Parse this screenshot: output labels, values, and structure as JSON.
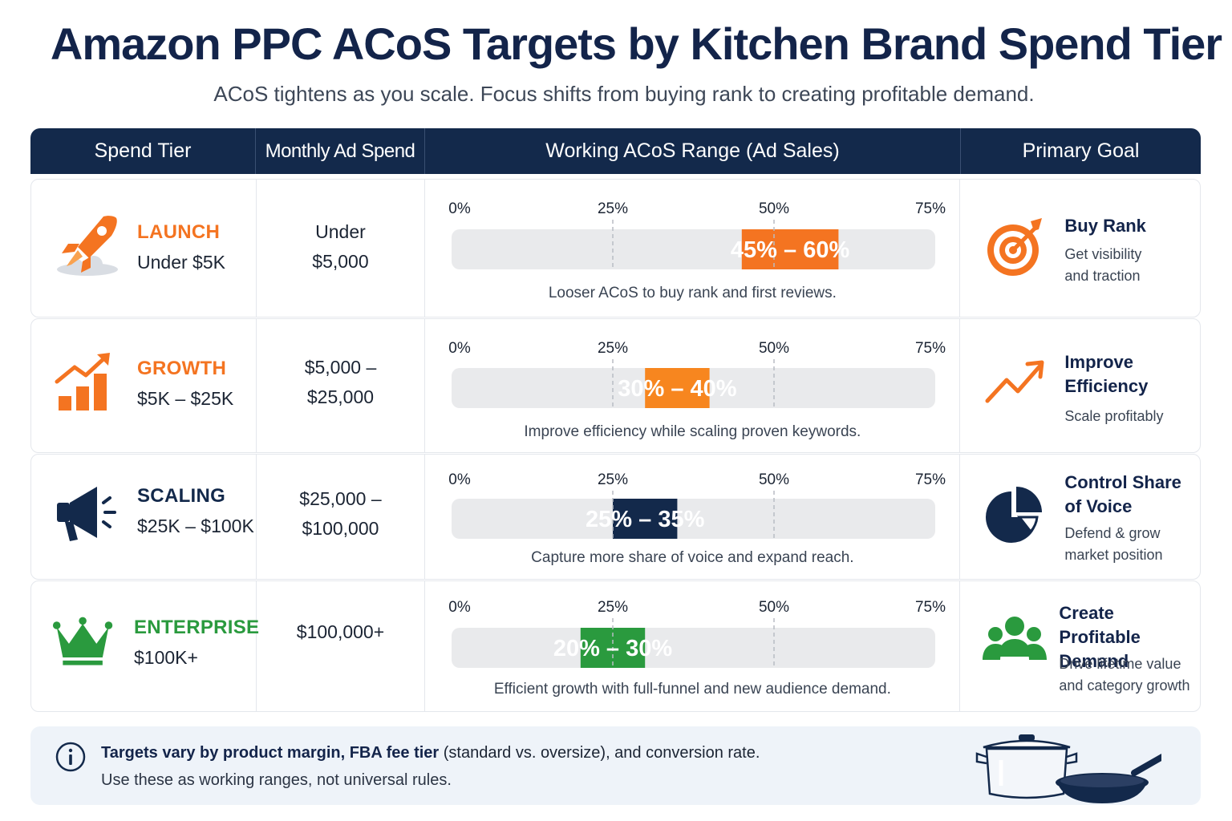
{
  "title": "Amazon PPC ACoS Targets by Kitchen Brand Spend Tier",
  "subtitle": "ACoS tightens as you scale. Focus shifts from buying rank to creating profitable demand.",
  "headers": [
    "Spend Tier",
    "Monthly Ad Spend",
    "Working ACoS Range (Ad Sales)",
    "Primary Goal"
  ],
  "chart_data": {
    "type": "bar",
    "orientation": "horizontal-range",
    "axis_ticks": [
      0,
      25,
      50,
      75
    ],
    "tick_labels": [
      "0%",
      "25%",
      "50%",
      "75%"
    ],
    "xlim": [
      0,
      75
    ],
    "unit": "%",
    "categories": [
      "LAUNCH",
      "GROWTH",
      "SCALING",
      "ENTERPRISE"
    ],
    "ranges": [
      {
        "low": 45,
        "high": 60,
        "label": "45% – 60%",
        "color": "#f47421"
      },
      {
        "low": 30,
        "high": 40,
        "label": "30% – 40%",
        "color": "#f7861f"
      },
      {
        "low": 25,
        "high": 35,
        "label": "25% – 35%",
        "color": "#13294b"
      },
      {
        "low": 20,
        "high": 30,
        "label": "20% – 30%",
        "color": "#2a9a3e"
      }
    ]
  },
  "rows": [
    {
      "tier": "LAUNCH",
      "range": "Under $5K",
      "color": "#f47421",
      "icon": "rocket-icon",
      "spend_lines": [
        "Under",
        "$5,000"
      ],
      "note": "Looser ACoS to buy rank and first reviews.",
      "goal_title": "Buy Rank",
      "goal_desc": [
        "Get visibility",
        "and traction"
      ],
      "goal_icon": "target-icon"
    },
    {
      "tier": "GROWTH",
      "range": "$5K – $25K",
      "color": "#f47421",
      "icon": "growth-bars-icon",
      "spend_lines": [
        "$5,000 –",
        "$25,000"
      ],
      "note": "Improve efficiency while scaling proven keywords.",
      "goal_title": "Improve Efficiency",
      "goal_desc": [
        "Scale profitably"
      ],
      "goal_icon": "trend-up-icon"
    },
    {
      "tier": "SCALING",
      "range": "$25K – $100K",
      "color": "#13294b",
      "icon": "megaphone-icon",
      "spend_lines": [
        "$25,000 –",
        "$100,000"
      ],
      "note": "Capture more share of voice and expand reach.",
      "goal_title": "Control Share of Voice",
      "goal_desc": [
        "Defend & grow",
        "market position"
      ],
      "goal_icon": "pie-chart-icon"
    },
    {
      "tier": "ENTERPRISE",
      "range": "$100K+",
      "color": "#2a9a3e",
      "icon": "crown-icon",
      "spend_lines": [
        "$100,000+"
      ],
      "note": "Efficient growth with full-funnel and new audience demand.",
      "goal_title": "Create Profitable Demand",
      "goal_desc": [
        "Drive lifetime value",
        "and category growth"
      ],
      "goal_icon": "people-group-icon"
    }
  ],
  "footer": {
    "bold": "Targets vary by product margin, FBA fee tier",
    "rest": " (standard vs. oversize), and conversion rate.",
    "line2": "Use these as working ranges, not universal rules.",
    "icon": "info-icon",
    "illustration": "cookware-icon"
  }
}
